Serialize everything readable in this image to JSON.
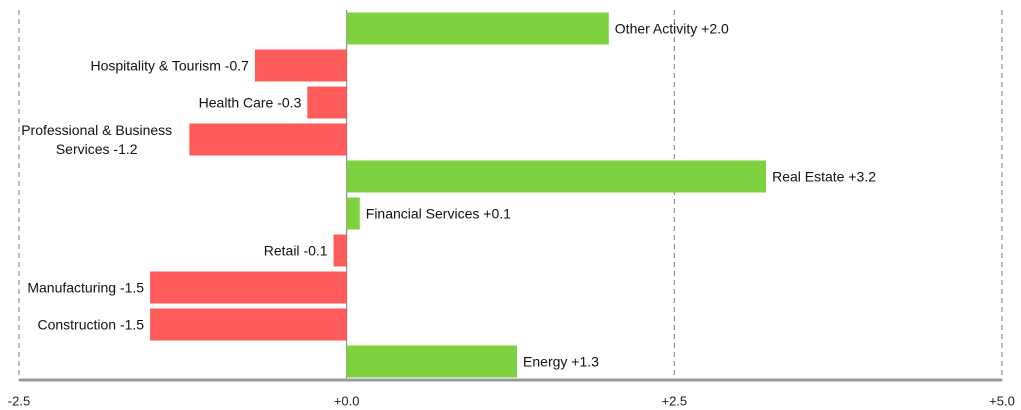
{
  "chart_data": {
    "type": "bar",
    "orientation": "horizontal",
    "categories": [
      "Other Activity",
      "Hospitality & Tourism",
      "Health Care",
      "Professional & Business Services",
      "Real Estate",
      "Financial Services",
      "Retail",
      "Manufacturing",
      "Construction",
      "Energy"
    ],
    "values": [
      2.0,
      -0.7,
      -0.3,
      -1.2,
      3.2,
      0.1,
      -0.1,
      -1.5,
      -1.5,
      1.3
    ],
    "value_labels": [
      "+2.0",
      "-0.7",
      "-0.3",
      "-1.2",
      "+3.2",
      "+0.1",
      "-0.1",
      "-1.5",
      "-1.5",
      "+1.3"
    ],
    "positive_color": "#7ed13f",
    "negative_color": "#ff5b5b",
    "xlim": [
      -2.5,
      5.0
    ],
    "xticks": [
      -2.5,
      {
        "value": 0,
        "label": "+0.0"
      },
      {
        "value": 2.5,
        "label": "+2.5"
      },
      {
        "value": 5.0,
        "label": "+5.0"
      }
    ],
    "grid": true
  }
}
